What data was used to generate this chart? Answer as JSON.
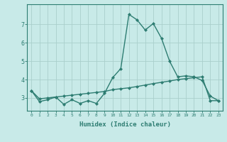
{
  "x": [
    0,
    1,
    2,
    3,
    4,
    5,
    6,
    7,
    8,
    9,
    10,
    11,
    12,
    13,
    14,
    15,
    16,
    17,
    18,
    19,
    20,
    21,
    22,
    23
  ],
  "line1_y": [
    3.4,
    2.8,
    2.9,
    3.05,
    2.65,
    2.9,
    2.7,
    2.85,
    2.7,
    3.25,
    4.1,
    4.6,
    7.55,
    7.25,
    6.7,
    7.05,
    6.25,
    5.0,
    4.15,
    4.2,
    4.15,
    3.95,
    3.1,
    2.85
  ],
  "line2_y": [
    3.4,
    2.95,
    3.0,
    3.05,
    3.1,
    3.15,
    3.2,
    3.25,
    3.3,
    3.35,
    3.45,
    3.5,
    3.55,
    3.62,
    3.7,
    3.78,
    3.85,
    3.92,
    4.0,
    4.05,
    4.1,
    4.15,
    2.85,
    2.85
  ],
  "color": "#2E7D72",
  "bg_color": "#C8EAE8",
  "grid_color": "#AACFCC",
  "xlabel": "Humidex (Indice chaleur)",
  "ylim": [
    2.3,
    8.1
  ],
  "xlim": [
    -0.5,
    23.5
  ],
  "yticks": [
    3,
    4,
    5,
    6,
    7
  ],
  "xticks": [
    0,
    1,
    2,
    3,
    4,
    5,
    6,
    7,
    8,
    9,
    10,
    11,
    12,
    13,
    14,
    15,
    16,
    17,
    18,
    19,
    20,
    21,
    22,
    23
  ],
  "xtick_labels": [
    "0",
    "1",
    "2",
    "3",
    "4",
    "5",
    "6",
    "7",
    "8",
    "9",
    "10",
    "11",
    "12",
    "13",
    "14",
    "15",
    "16",
    "17",
    "18",
    "19",
    "20",
    "21",
    "22",
    "23"
  ],
  "marker": "D",
  "markersize": 2.0,
  "linewidth": 1.0
}
